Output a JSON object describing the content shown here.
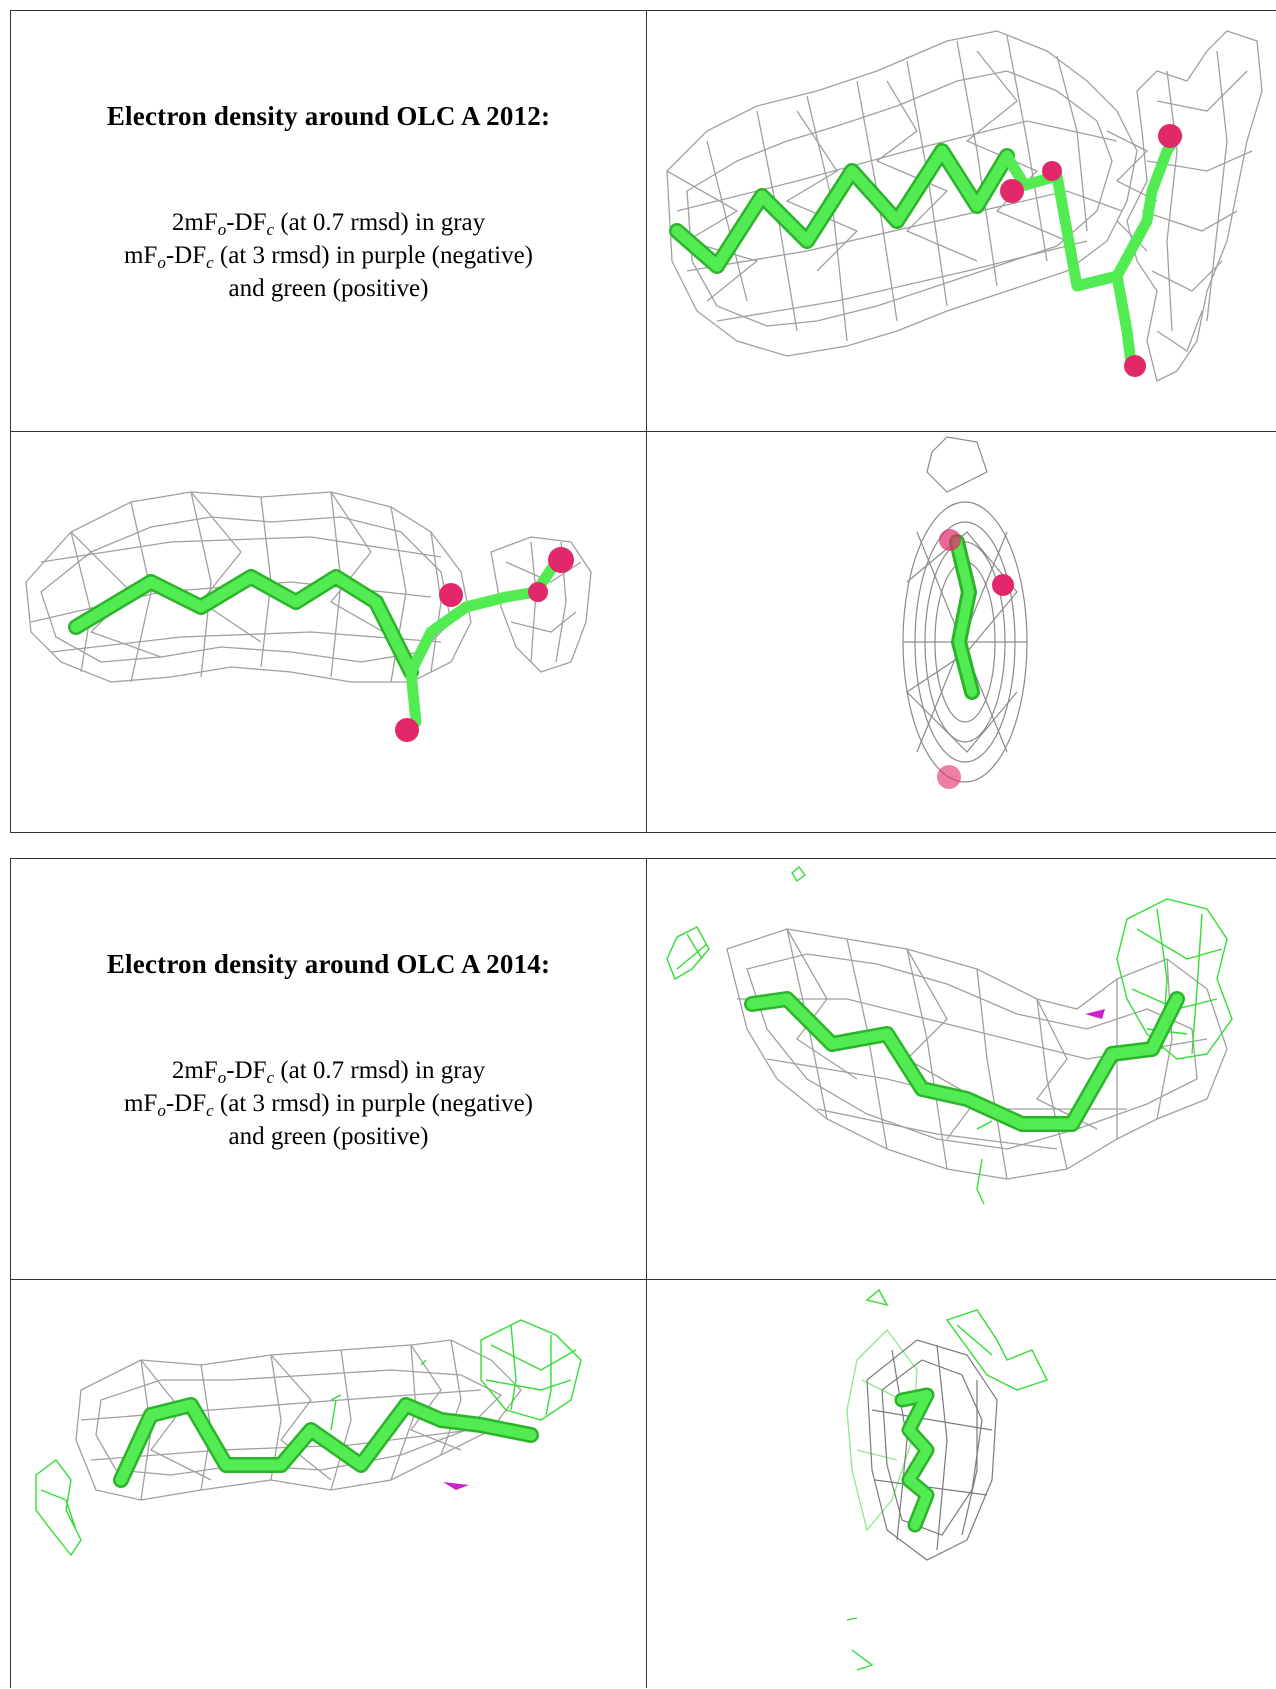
{
  "panels": [
    {
      "heading": "Electron density around OLC A 2012:",
      "lines": [
        {
          "pre": "2mF",
          "sub1": "o",
          "mid": "-DF",
          "sub2": "c",
          "post": " (at 0.7 rmsd) in gray"
        },
        {
          "pre": "mF",
          "sub1": "o",
          "mid": "-DF",
          "sub2": "c",
          "post": " (at 3 rmsd) in purple (negative)"
        },
        {
          "text": "and green (positive)"
        }
      ]
    },
    {
      "heading": "Electron density around OLC A 2014:",
      "lines": [
        {
          "pre": "2mF",
          "sub1": "o",
          "mid": "-DF",
          "sub2": "c",
          "post": " (at 0.7 rmsd) in gray"
        },
        {
          "pre": "mF",
          "sub1": "o",
          "mid": "-DF",
          "sub2": "c",
          "post": " (at 3 rmsd) in purple (negative)"
        },
        {
          "text": "and green (positive)"
        }
      ]
    }
  ],
  "colors": {
    "mesh_2fofc": "#9a9a9a",
    "positive_diff": "#33dd33",
    "negative_diff": "#cc22cc",
    "carbon": "#4ee84e",
    "oxygen": "#e8306c"
  }
}
